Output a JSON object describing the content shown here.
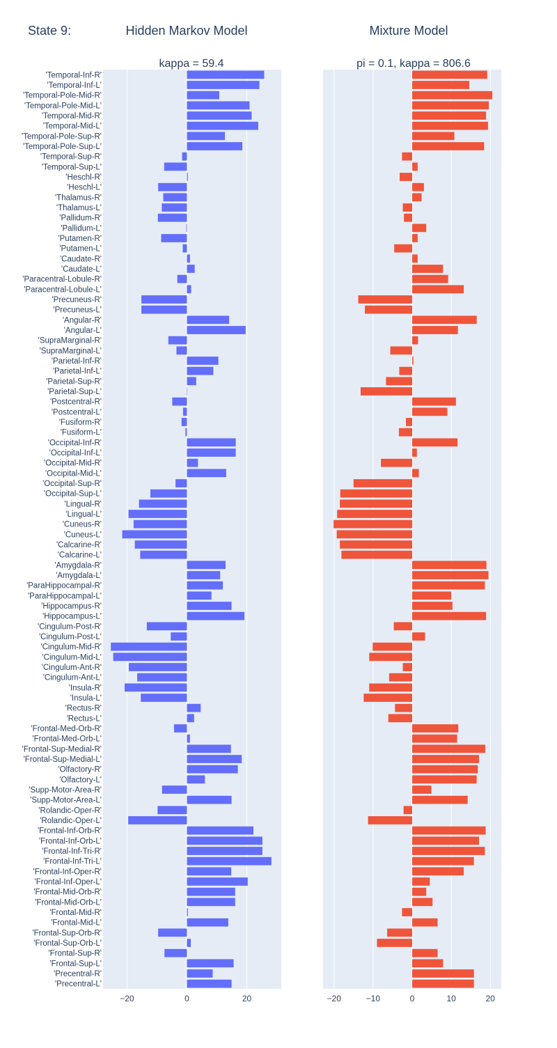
{
  "figure": {
    "state_label": "State 9:",
    "left_heading": "Hidden Markov Model",
    "right_heading": "Mixture Model"
  },
  "chart_data": [
    {
      "type": "bar",
      "orientation": "horizontal",
      "title": "kappa = 59.4",
      "color": "#636efa",
      "xlim": [
        -28,
        31.5
      ],
      "xticks": [
        -20,
        0,
        20
      ],
      "grid": true,
      "categories": [
        "'Temporal-Inf-R'",
        "'Temporal-Inf-L'",
        "'Temporal-Pole-Mid-R'",
        "'Temporal-Pole-Mid-L'",
        "'Temporal-Mid-R'",
        "'Temporal-Mid-L'",
        "'Temporal-Pole-Sup-R'",
        "'Temporal-Pole-Sup-L'",
        "'Temporal-Sup-R'",
        "'Temporal-Sup-L'",
        "'Heschl-R'",
        "'Heschl-L'",
        "'Thalamus-R'",
        "'Thalamus-L'",
        "'Pallidum-R'",
        "'Pallidum-L'",
        "'Putamen-R'",
        "'Putamen-L'",
        "'Caudate-R'",
        "'Caudate-L'",
        "'Paracentral-Lobule-R'",
        "'Paracentral-Lobule-L'",
        "'Precuneus-R'",
        "'Precuneus-L'",
        "'Angular-R'",
        "'Angular-L'",
        "'SupraMarginal-R'",
        "'SupraMarginal-L'",
        "'Parietal-Inf-R'",
        "'Parietal-Inf-L'",
        "'Parietal-Sup-R'",
        "'Parietal-Sup-L'",
        "'Postcentral-R'",
        "'Postcentral-L'",
        "'Fusiform-R'",
        "'Fusiform-L'",
        "'Occipital-Inf-R'",
        "'Occipital-Inf-L'",
        "'Occipital-Mid-R'",
        "'Occipital-Mid-L'",
        "'Occipital-Sup-R'",
        "'Occipital-Sup-L'",
        "'Lingual-R'",
        "'Lingual-L'",
        "'Cuneus-R'",
        "'Cuneus-L'",
        "'Calcarine-R'",
        "'Calcarine-L'",
        "'Amygdala-R'",
        "'Amygdala-L'",
        "'ParaHippocampal-R'",
        "'ParaHippocampal-L'",
        "'Hippocampus-R'",
        "'Hippocampus-L'",
        "'Cingulum-Post-R'",
        "'Cingulum-Post-L'",
        "'Cingulum-Mid-R'",
        "'Cingulum-Mid-L'",
        "'Cingulum-Ant-R'",
        "'Cingulum-Ant-L'",
        "'Insula-R'",
        "'Insula-L'",
        "'Rectus-R'",
        "'Rectus-L'",
        "'Frontal-Med-Orb-R'",
        "'Frontal-Med-Orb-L'",
        "'Frontal-Sup-Medial-R'",
        "'Frontal-Sup-Medial-L'",
        "'Olfactory-R'",
        "'Olfactory-L'",
        "'Supp-Motor-Area-R'",
        "'Supp-Motor-Area-L'",
        "'Rolandic-Oper-R'",
        "'Rolandic-Oper-L'",
        "'Frontal-Inf-Orb-R'",
        "'Frontal-Inf-Orb-L'",
        "'Frontal-Inf-Tri-R'",
        "'Frontal-Inf-Tri-L'",
        "'Frontal-Inf-Oper-R'",
        "'Frontal-Inf-Oper-L'",
        "'Frontal-Mid-Orb-R'",
        "'Frontal-Mid-Orb-L'",
        "'Frontal-Mid-R'",
        "'Frontal-Mid-L'",
        "'Frontal-Sup-Orb-R'",
        "'Frontal-Sup-Orb-L'",
        "'Frontal-Sup-R'",
        "'Frontal-Sup-L'",
        "'Precentral-R'",
        "'Precentral-L'"
      ],
      "values": [
        25.8,
        24.2,
        10.8,
        20.9,
        21.6,
        23.8,
        12.7,
        18.5,
        -1.6,
        -7.6,
        0.3,
        -9.6,
        -7.9,
        -8.4,
        -9.7,
        -0.2,
        -8.6,
        -1.4,
        1.0,
        2.6,
        -3.2,
        1.4,
        -15.2,
        -15.2,
        14.1,
        19.6,
        -6.2,
        -3.5,
        10.5,
        8.8,
        3.1,
        0,
        -4.9,
        -1.3,
        -1.8,
        -0.5,
        16.3,
        16.3,
        3.7,
        13.1,
        -3.8,
        -12.2,
        -16.0,
        -19.5,
        -17.8,
        -21.6,
        -17.4,
        -15.6,
        12.9,
        11.1,
        12.0,
        8.2,
        14.9,
        19.2,
        -13.4,
        -5.4,
        -25.4,
        -24.6,
        -19.4,
        -16.6,
        -20.8,
        -15.4,
        4.6,
        2.4,
        -4.3,
        1.0,
        14.7,
        18.3,
        17.0,
        6.0,
        -8.3,
        14.9,
        -9.8,
        -19.6,
        22.2,
        25.2,
        25.2,
        28.2,
        14.8,
        20.3,
        16.1,
        16.1,
        0.3,
        13.8,
        -9.6,
        1.3,
        -7.5,
        15.6,
        8.6,
        14.9
      ]
    },
    {
      "type": "bar",
      "orientation": "horizontal",
      "title": "pi = 0.1, kappa = 806.6",
      "color": "#ef553b",
      "xlim": [
        -22.8,
        22.8
      ],
      "xticks": [
        -20,
        -10,
        0,
        10,
        20
      ],
      "grid": true,
      "categories_shared_with_left": true,
      "values": [
        19.2,
        14.6,
        20.5,
        19.6,
        18.9,
        19.4,
        10.8,
        18.4,
        -2.6,
        1.4,
        -3.2,
        3.0,
        2.4,
        -2.4,
        -2.1,
        3.6,
        1.4,
        -4.6,
        1.4,
        7.9,
        9.2,
        13.2,
        -13.8,
        -12.1,
        16.5,
        11.7,
        1.5,
        -5.6,
        0.3,
        -3.3,
        -6.7,
        -13.2,
        11.2,
        9.0,
        -1.6,
        -3.4,
        11.6,
        1.2,
        -8.0,
        1.7,
        -15.0,
        -18.4,
        -18.5,
        -19.2,
        -20.1,
        -19.3,
        -18.5,
        -18.1,
        19.0,
        19.5,
        18.6,
        10.0,
        10.3,
        18.9,
        -4.7,
        3.3,
        -10.1,
        -11.0,
        -2.4,
        -5.9,
        -11.0,
        -12.4,
        -4.4,
        -6.1,
        11.8,
        11.5,
        18.7,
        17.1,
        16.8,
        16.5,
        4.9,
        14.2,
        -2.2,
        -11.3,
        18.8,
        17.1,
        18.6,
        15.8,
        13.2,
        4.5,
        3.6,
        5.2,
        -2.6,
        6.5,
        -6.4,
        -9.0,
        6.5,
        7.9,
        15.8,
        15.8
      ]
    }
  ]
}
